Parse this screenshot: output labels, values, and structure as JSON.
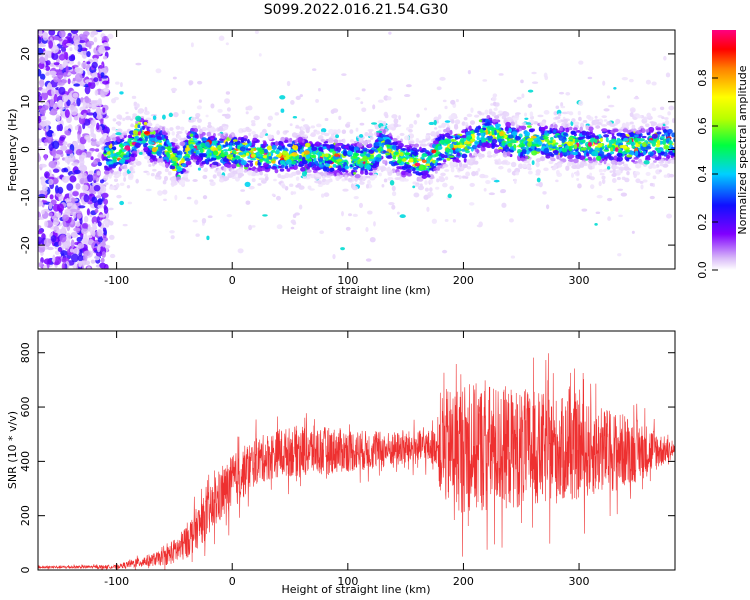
{
  "figure": {
    "title": "S099.2022.016.21.54.G30"
  },
  "chart_data": [
    {
      "type": "heatmap",
      "title": "S099.2022.016.21.54.G30",
      "xlabel": "Height of straight line (km)",
      "ylabel": "Frequency (Hz)",
      "xlim": [
        -168,
        383
      ],
      "ylim": [
        -25,
        25
      ],
      "xticks": [
        -100,
        0,
        100,
        200,
        300
      ],
      "xtick_labels": [
        "-100",
        "0",
        "100",
        "200",
        "300"
      ],
      "yticks": [
        -20,
        -10,
        0,
        10,
        20
      ],
      "ytick_labels": [
        "-20",
        "-10",
        "0",
        "10",
        "20"
      ],
      "ridge": {
        "description_points_x_km": [
          -110,
          -100,
          -90,
          -80,
          -75,
          -70,
          -60,
          -50,
          -45,
          -40,
          -35,
          -30,
          -20,
          -10,
          0,
          20,
          40,
          60,
          80,
          100,
          110,
          120,
          130,
          140,
          150,
          160,
          170,
          180,
          190,
          200,
          210,
          220,
          230,
          240,
          250,
          260,
          270,
          280,
          300,
          320,
          340,
          360,
          380
        ],
        "freq_hz": [
          -1.5,
          -1.0,
          0.0,
          3.5,
          3.0,
          0.5,
          1.0,
          -2.0,
          -3.0,
          -1.0,
          2.0,
          0.0,
          0.0,
          -0.5,
          -0.5,
          -1.0,
          -1.5,
          -1.0,
          -1.5,
          -2.0,
          -2.0,
          -2.0,
          1.0,
          -1.0,
          -2.0,
          -2.5,
          -3.0,
          0.0,
          1.0,
          0.5,
          2.5,
          3.5,
          3.0,
          2.0,
          1.0,
          2.0,
          1.5,
          1.5,
          1.0,
          1.0,
          0.5,
          1.0,
          1.5
        ]
      },
      "noise_region_x_km": [
        -168,
        -108
      ]
    },
    {
      "type": "colorbar",
      "label": "Normalized spectral amplitude",
      "range": [
        0.0,
        1.0
      ],
      "ticks": [
        0.0,
        0.2,
        0.4,
        0.6,
        0.8
      ],
      "tick_labels": [
        "0.0",
        "0.2",
        "0.4",
        "0.6",
        "0.8"
      ]
    },
    {
      "type": "line",
      "xlabel": "Height of straight line (km)",
      "ylabel": "SNR (10 * v/v)",
      "xlim": [
        -168,
        383
      ],
      "ylim": [
        0,
        880
      ],
      "xticks": [
        -100,
        0,
        100,
        200,
        300
      ],
      "xtick_labels": [
        "-100",
        "0",
        "100",
        "200",
        "300"
      ],
      "yticks": [
        0,
        200,
        400,
        600,
        800
      ],
      "ytick_labels": [
        "0",
        "200",
        "400",
        "600",
        "800"
      ],
      "color": "#ee3030",
      "envelope": {
        "x_km": [
          -168,
          -100,
          -85,
          -60,
          -45,
          -35,
          -20,
          -10,
          0,
          20,
          40,
          60,
          80,
          100,
          120,
          140,
          160,
          178,
          180,
          200,
          220,
          240,
          260,
          280,
          300,
          320,
          340,
          360,
          383
        ],
        "mean": [
          10,
          12,
          25,
          45,
          80,
          130,
          210,
          270,
          320,
          400,
          430,
          440,
          440,
          440,
          440,
          445,
          450,
          455,
          450,
          450,
          450,
          450,
          445,
          440,
          440,
          440,
          440,
          440,
          440
        ],
        "spread": [
          6,
          8,
          20,
          35,
          70,
          90,
          110,
          120,
          130,
          110,
          110,
          120,
          110,
          100,
          90,
          80,
          80,
          80,
          260,
          300,
          300,
          280,
          270,
          250,
          230,
          200,
          170,
          120,
          30
        ]
      }
    }
  ],
  "colors": {
    "line_red": "#ee3030"
  }
}
